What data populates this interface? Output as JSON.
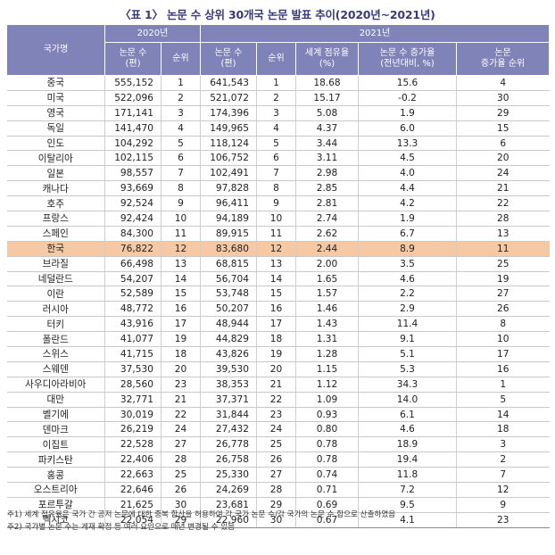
{
  "title": "〈표 1〉 논문 수 상위 30개국 논문 발표 추이(2020년~2021년)",
  "headers": {
    "country": "국가명",
    "year2020": "2020년",
    "year2021": "2021년",
    "papers": "논문 수",
    "papers_unit": "(편)",
    "rank": "순위",
    "share": "세계 점유율",
    "share_unit": "(%)",
    "growth": "논문 수 증가율",
    "growth_unit": "(전년대비, %)",
    "growth_rank_1": "논문",
    "growth_rank_2": "증가율 순위"
  },
  "highlight_country": "한국",
  "rows": [
    [
      "중국",
      "555,152",
      "1",
      "641,543",
      "1",
      "18.68",
      "15.6",
      "4"
    ],
    [
      "미국",
      "522,096",
      "2",
      "521,072",
      "2",
      "15.17",
      "-0.2",
      "30"
    ],
    [
      "영국",
      "171,141",
      "3",
      "174,396",
      "3",
      "5.08",
      "1.9",
      "29"
    ],
    [
      "독일",
      "141,470",
      "4",
      "149,965",
      "4",
      "4.37",
      "6.0",
      "15"
    ],
    [
      "인도",
      "104,292",
      "5",
      "118,124",
      "5",
      "3.44",
      "13.3",
      "6"
    ],
    [
      "이탈리아",
      "102,115",
      "6",
      "106,752",
      "6",
      "3.11",
      "4.5",
      "20"
    ],
    [
      "일본",
      "98,557",
      "7",
      "102,491",
      "7",
      "2.98",
      "4.0",
      "24"
    ],
    [
      "캐나다",
      "93,669",
      "8",
      "97,828",
      "8",
      "2.85",
      "4.4",
      "21"
    ],
    [
      "호주",
      "92,524",
      "9",
      "96,411",
      "9",
      "2.81",
      "4.2",
      "22"
    ],
    [
      "프랑스",
      "92,424",
      "10",
      "94,189",
      "10",
      "2.74",
      "1.9",
      "28"
    ],
    [
      "스페인",
      "84,300",
      "11",
      "89,915",
      "11",
      "2.62",
      "6.7",
      "13"
    ],
    [
      "한국",
      "76,822",
      "12",
      "83,680",
      "12",
      "2.44",
      "8.9",
      "11"
    ],
    [
      "브라질",
      "66,498",
      "13",
      "68,815",
      "13",
      "2.00",
      "3.5",
      "25"
    ],
    [
      "네덜란드",
      "54,207",
      "14",
      "56,704",
      "14",
      "1.65",
      "4.6",
      "19"
    ],
    [
      "이란",
      "52,589",
      "15",
      "53,748",
      "15",
      "1.57",
      "2.2",
      "27"
    ],
    [
      "러시아",
      "48,772",
      "16",
      "50,207",
      "16",
      "1.46",
      "2.9",
      "26"
    ],
    [
      "터키",
      "43,916",
      "17",
      "48,944",
      "17",
      "1.43",
      "11.4",
      "8"
    ],
    [
      "폴란드",
      "41,077",
      "19",
      "44,829",
      "18",
      "1.31",
      "9.1",
      "10"
    ],
    [
      "스위스",
      "41,715",
      "18",
      "43,826",
      "19",
      "1.28",
      "5.1",
      "17"
    ],
    [
      "스웨덴",
      "37,530",
      "20",
      "39,530",
      "20",
      "1.15",
      "5.3",
      "16"
    ],
    [
      "사우디아라비아",
      "28,560",
      "23",
      "38,353",
      "21",
      "1.12",
      "34.3",
      "1"
    ],
    [
      "대만",
      "32,771",
      "21",
      "37,371",
      "22",
      "1.09",
      "14.0",
      "5"
    ],
    [
      "벨기에",
      "30,019",
      "22",
      "31,844",
      "23",
      "0.93",
      "6.1",
      "14"
    ],
    [
      "덴마크",
      "26,219",
      "24",
      "27,432",
      "24",
      "0.80",
      "4.6",
      "18"
    ],
    [
      "이집트",
      "22,528",
      "27",
      "26,778",
      "25",
      "0.78",
      "18.9",
      "3"
    ],
    [
      "파키스탄",
      "22,406",
      "28",
      "26,758",
      "26",
      "0.78",
      "19.4",
      "2"
    ],
    [
      "홍콩",
      "22,663",
      "25",
      "25,330",
      "27",
      "0.74",
      "11.8",
      "7"
    ],
    [
      "오스트리아",
      "22,646",
      "26",
      "24,269",
      "28",
      "0.71",
      "7.2",
      "12"
    ],
    [
      "포르투갈",
      "21,625",
      "30",
      "23,681",
      "29",
      "0.69",
      "9.5",
      "9"
    ],
    [
      "멕시코",
      "22,054",
      "29",
      "22,960",
      "30",
      "0.67",
      "4.1",
      "23"
    ]
  ],
  "notes": [
    "주1) 세계 점유율은 국가 간 공저 논문에 대한 중복 합산을 허용하여 각 국가 논문 수/각 국가의 논문 수 합으로 산출하였음",
    "주2) 국가별 논문 수는 게재 확정 등 여러 요인으로 매년 변경될 수 있음"
  ]
}
